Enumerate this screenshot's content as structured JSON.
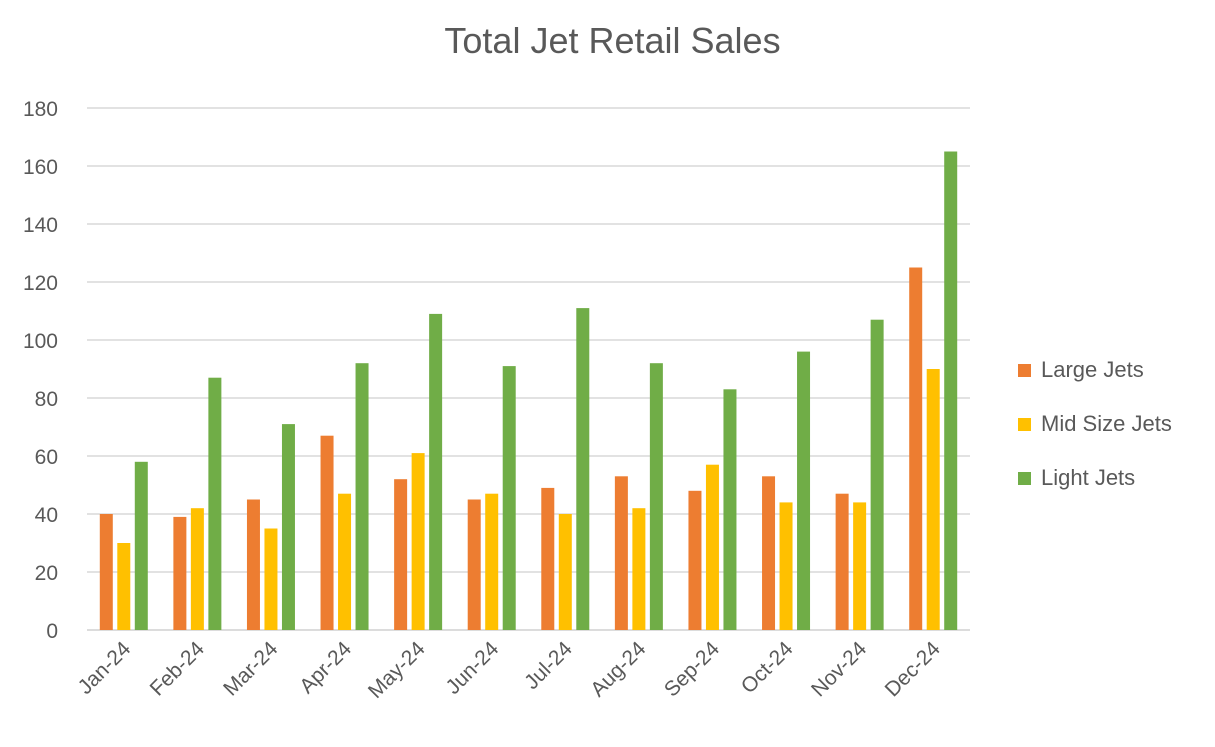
{
  "chart_data": {
    "type": "bar",
    "title": "Total Jet Retail Sales",
    "xlabel": "",
    "ylabel": "",
    "ylim": [
      0,
      180
    ],
    "yticks": [
      0,
      20,
      40,
      60,
      80,
      100,
      120,
      140,
      160,
      180
    ],
    "grid": true,
    "legend_position": "right",
    "categories": [
      "Jan-24",
      "Feb-24",
      "Mar-24",
      "Apr-24",
      "May-24",
      "Jun-24",
      "Jul-24",
      "Aug-24",
      "Sep-24",
      "Oct-24",
      "Nov-24",
      "Dec-24"
    ],
    "series": [
      {
        "name": "Large Jets",
        "color": "#ED7D31",
        "values": [
          40,
          39,
          45,
          67,
          52,
          45,
          49,
          53,
          48,
          53,
          47,
          125
        ]
      },
      {
        "name": "Mid Size Jets",
        "color": "#FFC000",
        "values": [
          30,
          42,
          35,
          47,
          61,
          47,
          40,
          42,
          57,
          44,
          44,
          90
        ]
      },
      {
        "name": "Light Jets",
        "color": "#70AD47",
        "values": [
          58,
          87,
          71,
          92,
          109,
          91,
          111,
          92,
          83,
          96,
          107,
          165
        ]
      }
    ]
  }
}
